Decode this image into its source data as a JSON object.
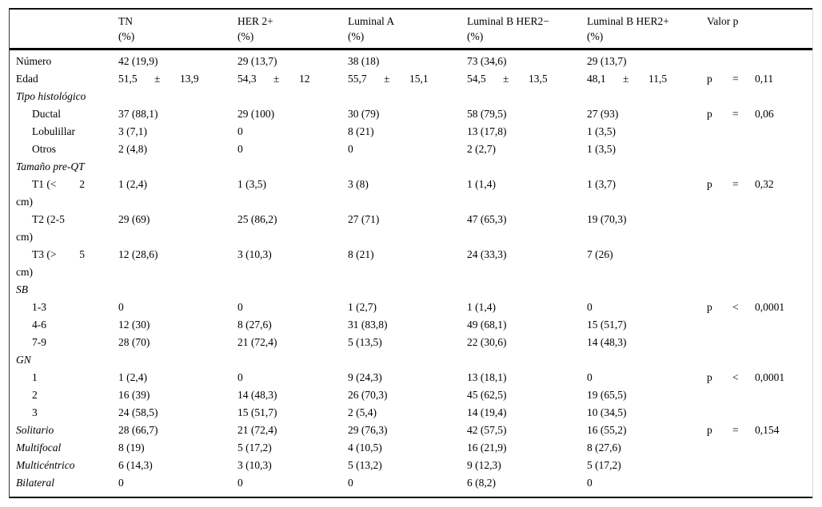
{
  "table": {
    "header": {
      "columns": [
        {
          "label": "TN",
          "unit": "(%)"
        },
        {
          "label": "HER 2+",
          "unit": "(%)"
        },
        {
          "label": "Luminal A",
          "unit": "(%)"
        },
        {
          "label": "Luminal B HER2−",
          "unit": "(%)"
        },
        {
          "label": "Luminal B HER2+",
          "unit": "(%)"
        },
        {
          "label": "Valor p",
          "unit": ""
        }
      ]
    },
    "rows": [
      {
        "type": "data",
        "label": "Número",
        "values": [
          "42 (19,9)",
          "29 (13,7)",
          "38 (18)",
          "73 (34,6)",
          "29 (13,7)"
        ],
        "p": null
      },
      {
        "type": "data",
        "label": "Edad",
        "triplets": [
          [
            "51,5",
            "±",
            "13,9"
          ],
          [
            "54,3",
            "±",
            "12"
          ],
          [
            "55,7",
            "±",
            "15,1"
          ],
          [
            "54,5",
            "±",
            "13,5"
          ],
          [
            "48,1",
            "±",
            "11,5"
          ]
        ],
        "p": [
          "p",
          "=",
          "0,11"
        ]
      },
      {
        "type": "section",
        "label": "Tipo histológico"
      },
      {
        "type": "data",
        "label": "Ductal",
        "indent": true,
        "values": [
          "37 (88,1)",
          "29 (100)",
          "30 (79)",
          "58 (79,5)",
          "27 (93)"
        ],
        "p": [
          "p",
          "=",
          "0,06"
        ]
      },
      {
        "type": "data",
        "label": "Lobulillar",
        "indent": true,
        "values": [
          "3 (7,1)",
          "0",
          "8 (21)",
          "13 (17,8)",
          "1 (3,5)"
        ],
        "p": null
      },
      {
        "type": "data",
        "label": "Otros",
        "indent": true,
        "values": [
          "2 (4,8)",
          "0",
          "0",
          "2 (2,7)",
          "1 (3,5)"
        ],
        "p": null
      },
      {
        "type": "section",
        "label": "Tamaño pre-QT"
      },
      {
        "type": "data2",
        "label_parts": [
          "T1 (<",
          "2"
        ],
        "label_line2": "cm)",
        "values": [
          "1 (2,4)",
          "1 (3,5)",
          "3 (8)",
          "1 (1,4)",
          "1 (3,7)"
        ],
        "p": [
          "p",
          "=",
          "0,32"
        ]
      },
      {
        "type": "data2",
        "label_parts": [
          "T2 (2-5"
        ],
        "label_line2": "cm)",
        "values": [
          "29 (69)",
          "25 (86,2)",
          "27 (71)",
          "47 (65,3)",
          "19 (70,3)"
        ],
        "p": null
      },
      {
        "type": "data2",
        "label_parts": [
          "T3 (>",
          "5"
        ],
        "label_line2": "cm)",
        "values": [
          "12 (28,6)",
          "3 (10,3)",
          "8 (21)",
          "24 (33,3)",
          "7 (26)"
        ],
        "p": null
      },
      {
        "type": "section",
        "label": "SB"
      },
      {
        "type": "data",
        "label": "1-3",
        "indent": true,
        "values": [
          "0",
          "0",
          "1 (2,7)",
          "1 (1,4)",
          "0"
        ],
        "p": [
          "p",
          "<",
          "0,0001"
        ]
      },
      {
        "type": "data",
        "label": "4-6",
        "indent": true,
        "values": [
          "12 (30)",
          "8 (27,6)",
          "31 (83,8)",
          "49 (68,1)",
          "15 (51,7)"
        ],
        "p": null
      },
      {
        "type": "data",
        "label": "7-9",
        "indent": true,
        "values": [
          "28 (70)",
          "21 (72,4)",
          "5 (13,5)",
          "22 (30,6)",
          "14 (48,3)"
        ],
        "p": null
      },
      {
        "type": "section",
        "label": "GN"
      },
      {
        "type": "data",
        "label": "1",
        "indent": true,
        "values": [
          "1 (2,4)",
          "0",
          "9 (24,3)",
          "13 (18,1)",
          "0"
        ],
        "p": [
          "p",
          "<",
          "0,0001"
        ]
      },
      {
        "type": "data",
        "label": "2",
        "indent": true,
        "values": [
          "16 (39)",
          "14 (48,3)",
          "26 (70,3)",
          "45 (62,5)",
          "19 (65,5)"
        ],
        "p": null
      },
      {
        "type": "data",
        "label": "3",
        "indent": true,
        "values": [
          "24 (58,5)",
          "15 (51,7)",
          "2 (5,4)",
          "14 (19,4)",
          "10 (34,5)"
        ],
        "p": null
      },
      {
        "type": "data",
        "label": "Solitario",
        "italic": true,
        "values": [
          "28 (66,7)",
          "21 (72,4)",
          "29 (76,3)",
          "42 (57,5)",
          "16 (55,2)"
        ],
        "p": [
          "p",
          "=",
          "0,154"
        ]
      },
      {
        "type": "data",
        "label": "Multifocal",
        "italic": true,
        "values": [
          "8 (19)",
          "5 (17,2)",
          "4 (10,5)",
          "16 (21,9)",
          "8 (27,6)"
        ],
        "p": null
      },
      {
        "type": "data",
        "label": "Multicéntrico",
        "italic": true,
        "values": [
          "6 (14,3)",
          "3 (10,3)",
          "5 (13,2)",
          "9 (12,3)",
          "5 (17,2)"
        ],
        "p": null
      },
      {
        "type": "data",
        "label": "Bilateral",
        "italic": true,
        "values": [
          "0",
          "0",
          "0",
          "6 (8,2)",
          "0"
        ],
        "p": null
      }
    ]
  }
}
